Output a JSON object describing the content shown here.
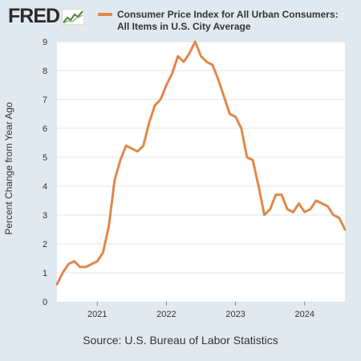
{
  "header": {
    "logo_text": "FRED",
    "logo_icon": "trend-line-icon"
  },
  "source": "Source: U.S. Bureau of Labor Statistics",
  "chart_data": {
    "type": "line",
    "title": "Consumer Price Index for All Urban Consumers:",
    "title_line2": "All Items in U.S. City Average",
    "ylabel": "Percent Change from Year Ago",
    "xlabel": "",
    "ylim": [
      0,
      9
    ],
    "yticks": [
      0,
      1,
      2,
      3,
      4,
      5,
      6,
      7,
      8,
      9
    ],
    "xticks": [
      "2021",
      "2022",
      "2023",
      "2024"
    ],
    "grid": true,
    "legend_position": "top",
    "colors": {
      "line": "#e0884a",
      "background": "#e1e9f0",
      "plot": "#ffffff",
      "grid": "#e6e6e6"
    },
    "series": [
      {
        "name": "Consumer Price Index for All Urban Consumers: All Items in U.S. City Average",
        "x": [
          "2020-06",
          "2020-07",
          "2020-08",
          "2020-09",
          "2020-10",
          "2020-11",
          "2020-12",
          "2021-01",
          "2021-02",
          "2021-03",
          "2021-04",
          "2021-05",
          "2021-06",
          "2021-07",
          "2021-08",
          "2021-09",
          "2021-10",
          "2021-11",
          "2021-12",
          "2022-01",
          "2022-02",
          "2022-03",
          "2022-04",
          "2022-05",
          "2022-06",
          "2022-07",
          "2022-08",
          "2022-09",
          "2022-10",
          "2022-11",
          "2022-12",
          "2023-01",
          "2023-02",
          "2023-03",
          "2023-04",
          "2023-05",
          "2023-06",
          "2023-07",
          "2023-08",
          "2023-09",
          "2023-10",
          "2023-11",
          "2023-12",
          "2024-01",
          "2024-02",
          "2024-03",
          "2024-04",
          "2024-05",
          "2024-06",
          "2024-07",
          "2024-08"
        ],
        "values": [
          0.6,
          1.0,
          1.3,
          1.4,
          1.2,
          1.2,
          1.3,
          1.4,
          1.7,
          2.6,
          4.2,
          4.9,
          5.4,
          5.3,
          5.2,
          5.4,
          6.2,
          6.8,
          7.0,
          7.5,
          7.9,
          8.5,
          8.3,
          8.6,
          9.0,
          8.5,
          8.3,
          8.2,
          7.7,
          7.1,
          6.5,
          6.4,
          6.0,
          5.0,
          4.9,
          4.0,
          3.0,
          3.2,
          3.7,
          3.7,
          3.2,
          3.1,
          3.4,
          3.1,
          3.2,
          3.5,
          3.4,
          3.3,
          3.0,
          2.9,
          2.5
        ]
      }
    ]
  }
}
